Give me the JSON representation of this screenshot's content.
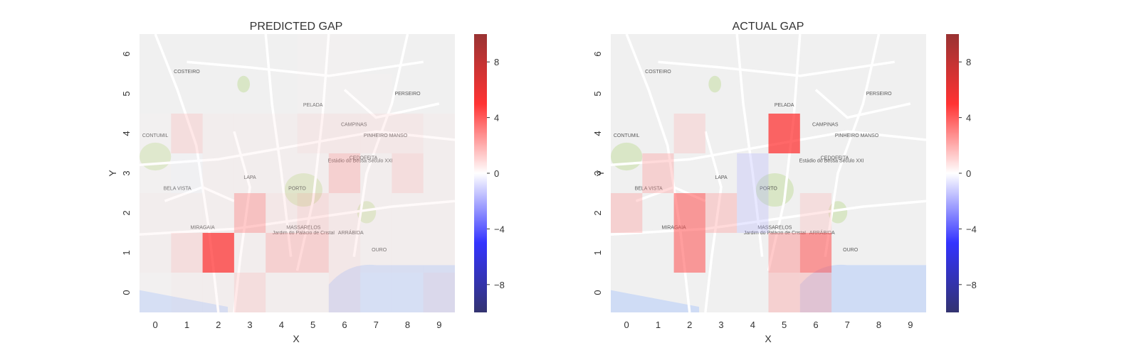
{
  "figure": {
    "colorbar_ticks": [
      8,
      4,
      0,
      -4,
      -8
    ],
    "colorbar_tick_labels": [
      "8",
      "4",
      "0",
      "−4",
      "−8"
    ],
    "colors": {
      "map_bg": "#f0f0f0",
      "water": "#cfdcf5",
      "park": "#d9e6c6",
      "road": "#ffffff",
      "positive": "#ff0000",
      "negative": "#0000ff",
      "zero": "#ffffff"
    },
    "map_labels": [
      "PELADA",
      "CAMPINAS",
      "PINHEIRO MANSO",
      "PORTO",
      "LAPA",
      "MIRAGAIA",
      "ARRÁBIDA",
      "OURO",
      "PERSEIRO",
      "CONTUMIL",
      "BELA VISTA",
      "COSTEIRO",
      "CEDOFEITA",
      "MASSARELOS",
      "Estádio do Bessa Século XXI",
      "Jardim do Palácio de Cristal"
    ]
  },
  "chart_data": [
    {
      "type": "heatmap",
      "title": "PREDICTED GAP",
      "xlabel": "X",
      "ylabel": "Y",
      "x": [
        0,
        1,
        2,
        3,
        4,
        5,
        6,
        7,
        8,
        9
      ],
      "y": [
        0,
        1,
        2,
        3,
        4,
        5,
        6
      ],
      "clim": [
        -10,
        10
      ],
      "colormap": "seismic",
      "values": [
        [
          0.3,
          0.5,
          0.5,
          1.5,
          0.5,
          0.5,
          1.0,
          0.3,
          0.3,
          1.0
        ],
        [
          0.5,
          1.5,
          4.5,
          0.5,
          2.0,
          2.0,
          1.0,
          0.5,
          0.5,
          0.5
        ],
        [
          0.5,
          0.5,
          0.5,
          2.5,
          1.0,
          1.5,
          1.0,
          0.5,
          0.5,
          0.5
        ],
        [
          0.3,
          -0.3,
          0.5,
          0.5,
          0.5,
          0.5,
          2.0,
          0.5,
          1.5,
          0.5
        ],
        [
          0.3,
          1.5,
          0.5,
          0.5,
          0.5,
          1.0,
          1.0,
          1.0,
          1.0,
          0.5
        ],
        [
          0,
          0,
          0,
          0,
          0,
          0.3,
          0.3,
          0.3,
          0,
          0
        ],
        [
          0,
          0,
          0,
          0,
          0,
          0.3,
          0.3,
          0,
          0,
          0
        ]
      ]
    },
    {
      "type": "heatmap",
      "title": "ACTUAL GAP",
      "xlabel": "X",
      "ylabel": "Y",
      "x": [
        0,
        1,
        2,
        3,
        4,
        5,
        6,
        7,
        8,
        9
      ],
      "y": [
        0,
        1,
        2,
        3,
        4,
        5,
        6
      ],
      "clim": [
        -10,
        10
      ],
      "colormap": "seismic",
      "values": [
        [
          0,
          0,
          0,
          0,
          0,
          2.0,
          2.0,
          0,
          0,
          0
        ],
        [
          0,
          0,
          3.5,
          0,
          0,
          2.5,
          3.5,
          0,
          0,
          0
        ],
        [
          2.0,
          0,
          3.5,
          2.0,
          -1.5,
          0,
          1.5,
          0,
          0,
          0
        ],
        [
          0,
          2.0,
          0,
          0,
          -1.5,
          0,
          0,
          0,
          0,
          0
        ],
        [
          0,
          0,
          1.5,
          0,
          0,
          4.5,
          0,
          0,
          0,
          0
        ],
        [
          0,
          0,
          0,
          0,
          0,
          0,
          0,
          0,
          0,
          0
        ],
        [
          0,
          0,
          0,
          0,
          0,
          0,
          0,
          0,
          0,
          0
        ]
      ]
    }
  ]
}
